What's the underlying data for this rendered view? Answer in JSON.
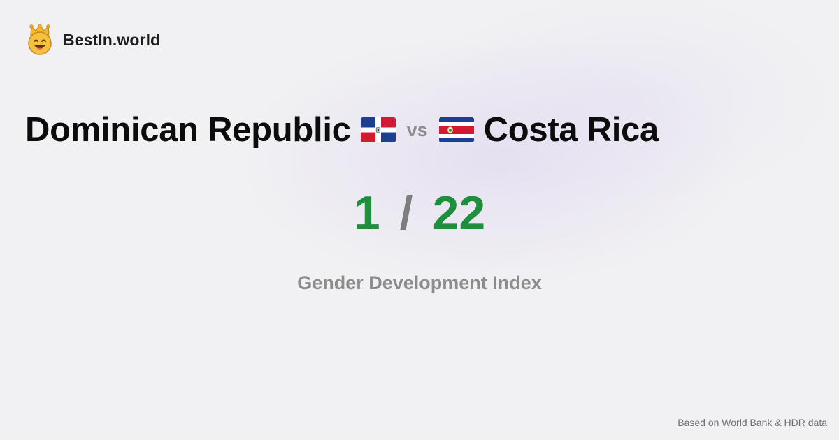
{
  "site": {
    "name": "BestIn.world",
    "logo_icon": "crowned-smiley-icon"
  },
  "comparison": {
    "country_a": "Dominican Republic",
    "country_a_flag": "dominican-republic-flag-icon",
    "vs_label": "vs",
    "country_b": "Costa Rica",
    "country_b_flag": "costa-rica-flag-icon",
    "rank_a": "1",
    "separator": "/",
    "rank_b": "22",
    "metric": "Gender Development Index"
  },
  "footer": {
    "source": "Based on World Bank & HDR data"
  },
  "colors": {
    "background": "#f1f1f3",
    "rank_green": "#1e8f3c",
    "muted_gray": "#8c8c8c",
    "text_dark": "#0c0c0c"
  }
}
